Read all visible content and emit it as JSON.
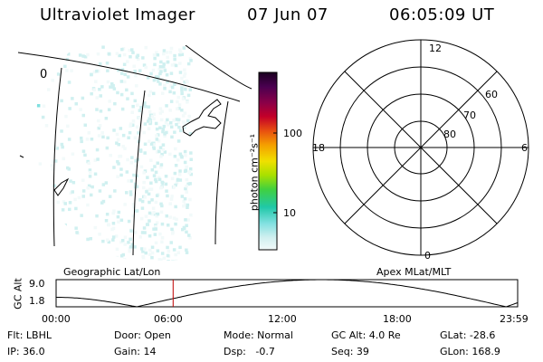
{
  "header": {
    "title": "Ultraviolet Imager",
    "date": "07 Jun 07",
    "time": "06:05:09 UT"
  },
  "geo_map": {
    "label": "Geographic Lat/Lon",
    "lon_label": "0"
  },
  "colorbar": {
    "units": "photon cm⁻²s⁻¹",
    "ticks": [
      {
        "label": "100",
        "value": 100
      },
      {
        "label": "10",
        "value": 10
      }
    ],
    "colors": [
      "#1a0020",
      "#4a0050",
      "#8a0048",
      "#c40028",
      "#e85010",
      "#f5a000",
      "#f0e000",
      "#a8e000",
      "#40d040",
      "#20c8a8",
      "#80e0e0",
      "#d0f0f0",
      "#f2fafa"
    ]
  },
  "polar_plot": {
    "label": "Apex MLat/MLT",
    "mlt_labels": [
      "12",
      "6",
      "0",
      "18"
    ],
    "mlat_labels": [
      "60",
      "70",
      "80"
    ]
  },
  "altitude_plot": {
    "axis_label": "GC Alt",
    "y_ticks": [
      "9.0",
      "1.8"
    ],
    "x_ticks": [
      "00:00",
      "06:00",
      "12:00",
      "18:00",
      "23:59"
    ],
    "current_time_hours": 6.086
  },
  "info": {
    "flt": "Flt: LBHL",
    "ip": "IP: 36.0",
    "door": "Door: Open",
    "gain": "Gain: 14",
    "mode": "Mode: Normal",
    "dsp": "Dsp:   -0.7",
    "gc_alt": "GC Alt: 4.0 Re",
    "seq": "Seq: 39",
    "glat": "GLat: -28.6",
    "glon": "GLon: 168.9"
  }
}
